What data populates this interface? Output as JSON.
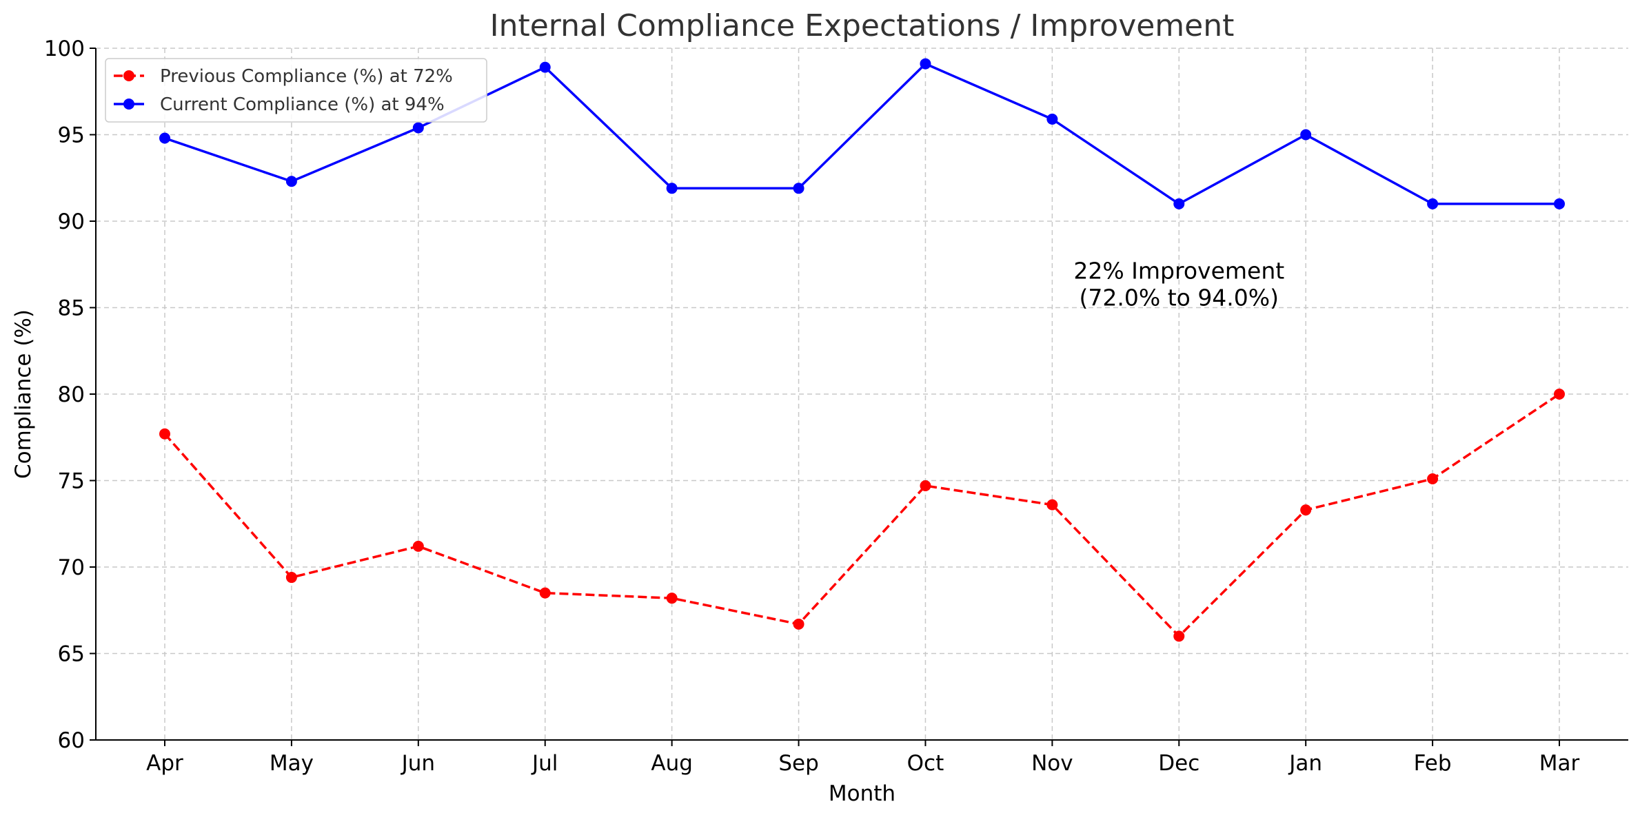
{
  "chart_data": {
    "type": "line",
    "title": "Internal Compliance Expectations / Improvement",
    "xlabel": "Month",
    "ylabel": "Compliance (%)",
    "ylim": [
      60,
      100
    ],
    "yticks": [
      60,
      65,
      70,
      75,
      80,
      85,
      90,
      95,
      100
    ],
    "grid": true,
    "legend_position": "top-left",
    "categories": [
      "Apr",
      "May",
      "Jun",
      "Jul",
      "Aug",
      "Sep",
      "Oct",
      "Nov",
      "Dec",
      "Jan",
      "Feb",
      "Mar"
    ],
    "series": [
      {
        "name": "Previous Compliance (%) at 72%",
        "color": "#ff0000",
        "line_style": "dashed",
        "marker": "circle",
        "values": [
          77.7,
          69.4,
          71.2,
          68.5,
          68.2,
          66.7,
          74.7,
          73.6,
          66.0,
          73.3,
          75.1,
          80.0
        ]
      },
      {
        "name": "Current Compliance (%) at 94%",
        "color": "#0000ff",
        "line_style": "solid",
        "marker": "circle",
        "values": [
          94.8,
          92.3,
          95.4,
          98.9,
          91.9,
          91.9,
          99.1,
          95.9,
          91.0,
          95.0,
          91.0,
          91.0
        ]
      }
    ],
    "annotation": {
      "lines": [
        "22% Improvement",
        "(72.0% to 94.0%)"
      ],
      "x_category": "Dec",
      "y": 86.2
    }
  }
}
